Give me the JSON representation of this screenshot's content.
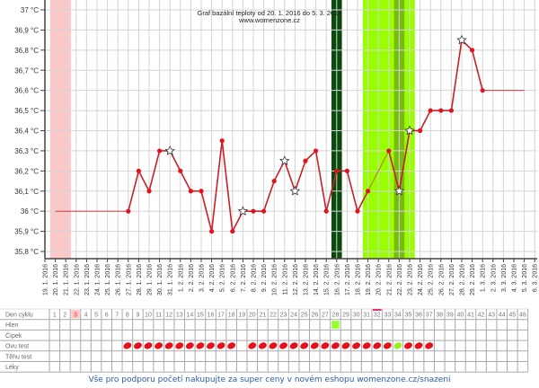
{
  "chart_data": {
    "type": "line",
    "title": "Graf bazální teploty od 20. 1. 2016 do 5. 3. 2016",
    "subtitle": "www.womenzone.cz",
    "ylim": [
      35.8,
      37.0
    ],
    "yticks": [
      "37 °C",
      "36,9 °C",
      "36,8 °C",
      "36,7 °C",
      "36,6 °C",
      "36,5 °C",
      "36,4 °C",
      "36,3 °C",
      "36,2 °C",
      "36,1 °C",
      "36 °C",
      "35,9 °C",
      "35,8 °C"
    ],
    "x": [
      "19. 1. 2016",
      "20. 1. 2016",
      "21. 1. 2016",
      "22. 1. 2016",
      "23. 1. 2016",
      "24. 1. 2016",
      "25. 1. 2016",
      "26. 1. 2016",
      "27. 1. 2016",
      "28. 1. 2016",
      "29. 1. 2016",
      "30. 1. 2016",
      "31. 1. 2016",
      "1. 2. 2016",
      "2. 2. 2016",
      "3. 2. 2016",
      "4. 2. 2016",
      "5. 2. 2016",
      "6. 2. 2016",
      "7. 2. 2016",
      "8. 2. 2016",
      "9. 2. 2016",
      "10. 2. 2016",
      "11. 2. 2016",
      "12. 2. 2016",
      "13. 2. 2016",
      "14. 2. 2016",
      "15. 2. 2016",
      "16. 2. 2016",
      "17. 2. 2016",
      "18. 2. 2016",
      "19. 2. 2016",
      "20. 2. 2016",
      "21. 2. 2016",
      "22. 2. 2016",
      "23. 2. 2016",
      "24. 2. 2016",
      "25. 2. 2016",
      "26. 2. 2016",
      "27. 2. 2016",
      "28. 2. 2016",
      "29. 2. 2016",
      "1. 3. 2016",
      "2. 3. 2016",
      "3. 3. 2016",
      "4. 3. 2016",
      "5. 3. 2016",
      "6. 3. 2016"
    ],
    "series": [
      {
        "values": [
          null,
          36.0,
          null,
          null,
          null,
          null,
          null,
          null,
          36.0,
          36.2,
          36.1,
          36.3,
          36.3,
          36.2,
          36.1,
          36.1,
          35.9,
          36.35,
          35.9,
          36.0,
          36.0,
          36.0,
          36.15,
          36.25,
          36.1,
          36.25,
          36.3,
          36.0,
          36.2,
          36.2,
          36.0,
          36.1,
          null,
          36.3,
          36.1,
          36.4,
          36.4,
          36.5,
          36.5,
          36.5,
          36.85,
          36.8,
          36.6,
          null,
          null,
          null,
          36.6,
          null
        ],
        "stars": [
          "31. 1. 2016",
          "7. 2. 2016",
          "11. 2. 2016",
          "12. 2. 2016",
          "22. 2. 2016",
          "23. 2. 2016",
          "28. 2. 2016"
        ],
        "color": "#c8202a"
      }
    ],
    "bands": [
      {
        "from": "20. 1. 2016",
        "to": "21. 1. 2016",
        "color": "#ffc8c8"
      },
      {
        "from": "16. 2. 2016",
        "to": "16. 2. 2016",
        "color": "#0a4a0a"
      },
      {
        "from": "19. 2. 2016",
        "to": "23. 2. 2016",
        "color": "#99ff00"
      },
      {
        "from": "22. 2. 2016",
        "to": "22. 2. 2016",
        "color": "#77bb11"
      }
    ],
    "grid": true
  },
  "table": {
    "rows": [
      "Den cyklu",
      "Hlen",
      "Čípek",
      "Ovu test",
      "Těhu test",
      "Léky"
    ],
    "days": 46,
    "highlight_day": 3,
    "marked_day": 32,
    "hlen_days": [
      28
    ],
    "ovu_red": [
      8,
      9,
      10,
      11,
      12,
      13,
      14,
      15,
      16,
      17,
      18,
      20,
      21,
      22,
      23,
      24,
      25,
      26,
      27,
      28,
      29,
      30,
      31,
      32,
      33,
      35,
      36,
      37
    ],
    "ovu_green": [
      34
    ]
  },
  "footer": "Vše pro podporu početí nakupujte za super ceny v novém eshopu womenzone.cz/snazeni"
}
